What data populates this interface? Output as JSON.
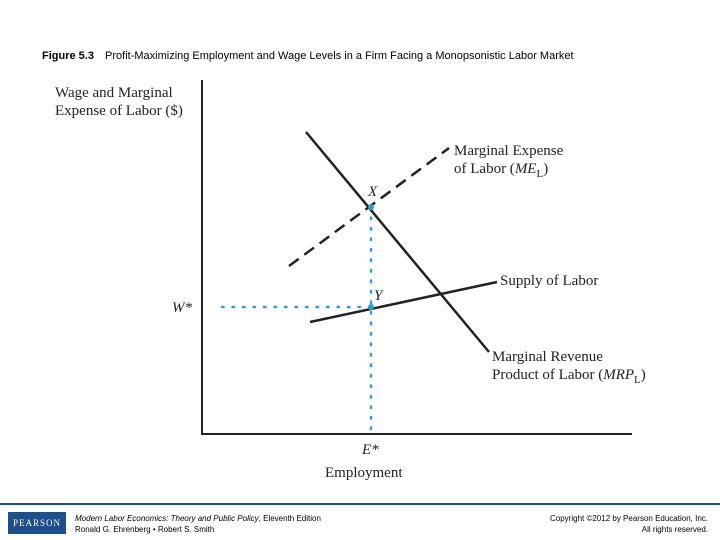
{
  "caption": {
    "number": "Figure 5.3",
    "title": "Profit-Maximizing Employment and Wage Levels in a Firm Facing a Monopsonistic Labor Market"
  },
  "diagram": {
    "y_axis_label_line1": "Wage and Marginal",
    "y_axis_label_line2": "Expense of Labor ($)",
    "x_axis_label": "Employment",
    "point_x_label": "X",
    "point_y_label": "Y",
    "wage_label": "W*",
    "employment_label": "E*",
    "me_label_line1": "Marginal Expense",
    "me_label_line2_prefix": "of Labor (",
    "me_label_symbol": "ME",
    "me_label_subscript": "L",
    "me_label_suffix": ")",
    "supply_label": "Supply of Labor",
    "mrp_label_line1": "Marginal Revenue",
    "mrp_label_line2_prefix": "Product of Labor (",
    "mrp_label_symbol": "MRP",
    "mrp_label_subscript": "L",
    "mrp_label_suffix": ")"
  },
  "footer": {
    "logo_text": "PEARSON",
    "book_title_italic": "Modern Labor Economics: Theory and Public Policy",
    "book_edition": ", Eleventh Edition",
    "authors": "Ronald G. Ehrenberg • Robert S. Smith",
    "copyright_line1": "Copyright ©2012 by Pearson Education, Inc.",
    "copyright_line2": "All rights reserved."
  },
  "colors": {
    "curve": "#222222",
    "guide_dots": "#2a9fd6",
    "footer_rule": "#1f4e8c"
  }
}
